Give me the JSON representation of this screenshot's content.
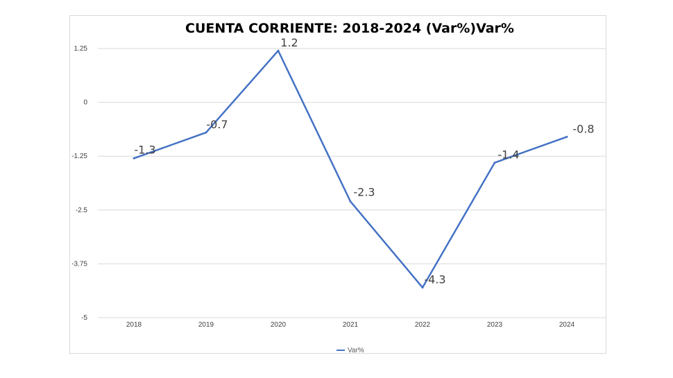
{
  "chart_data": {
    "type": "line",
    "title": "CUENTA CORRIENTE: 2018-2024 (Var%)Var%",
    "xlabel": "",
    "ylabel": "",
    "categories": [
      "2018",
      "2019",
      "2020",
      "2021",
      "2022",
      "2023",
      "2024"
    ],
    "series": [
      {
        "name": "Var%",
        "values": [
          -1.3,
          -0.7,
          1.2,
          -2.3,
          -4.3,
          -1.4,
          -0.8
        ],
        "labels": [
          "-1.3",
          "-0.7",
          "1.2",
          "-2.3",
          "-4.3",
          "-1.4",
          "-0.8"
        ],
        "color": "#4472c4"
      }
    ],
    "yticks": [
      "1.25",
      "0",
      "-1.25",
      "-2.5",
      "-3.75",
      "-5"
    ],
    "ylim": [
      -5,
      1.25
    ],
    "grid": true,
    "legend": "bottom"
  }
}
